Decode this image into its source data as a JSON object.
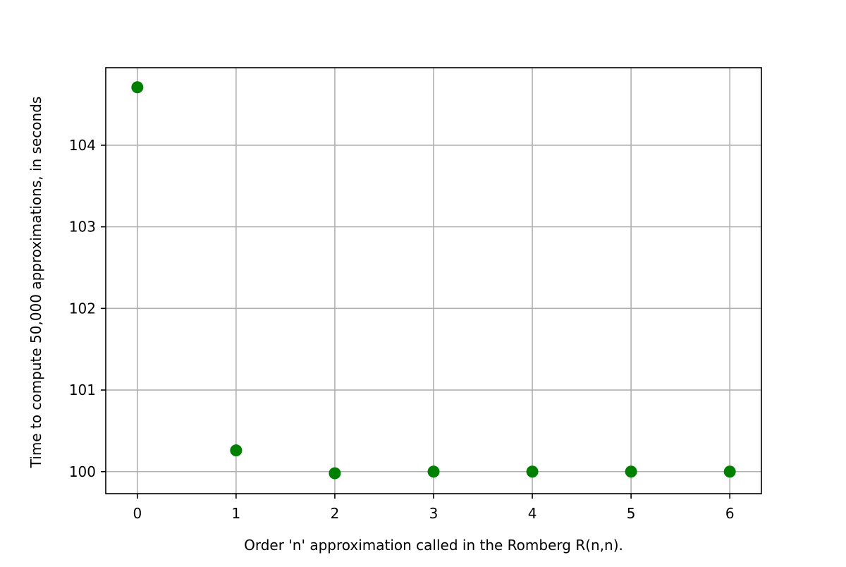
{
  "chart_data": {
    "type": "scatter",
    "title": "",
    "xlabel": "Order 'n' approximation called in the Romberg R(n,n).",
    "ylabel": "Time to compute 50,000 approximations, in seconds",
    "xlim": [
      -0.32,
      6.32
    ],
    "ylim": [
      99.73,
      104.95
    ],
    "xticks": [
      0,
      1,
      2,
      3,
      4,
      5,
      6
    ],
    "yticks": [
      100,
      101,
      102,
      103,
      104
    ],
    "x_tick_labels": [
      "0",
      "1",
      "2",
      "3",
      "4",
      "5",
      "6"
    ],
    "y_tick_labels": [
      "100",
      "101",
      "102",
      "103",
      "104"
    ],
    "grid": true,
    "legend": false,
    "marker_color": "#008000",
    "grid_color": "#b0b0b0",
    "series": [
      {
        "x": [
          0,
          1,
          2,
          3,
          4,
          5,
          6
        ],
        "y": [
          104.71,
          100.26,
          99.98,
          100.0,
          100.0,
          100.0,
          100.0
        ]
      }
    ]
  }
}
